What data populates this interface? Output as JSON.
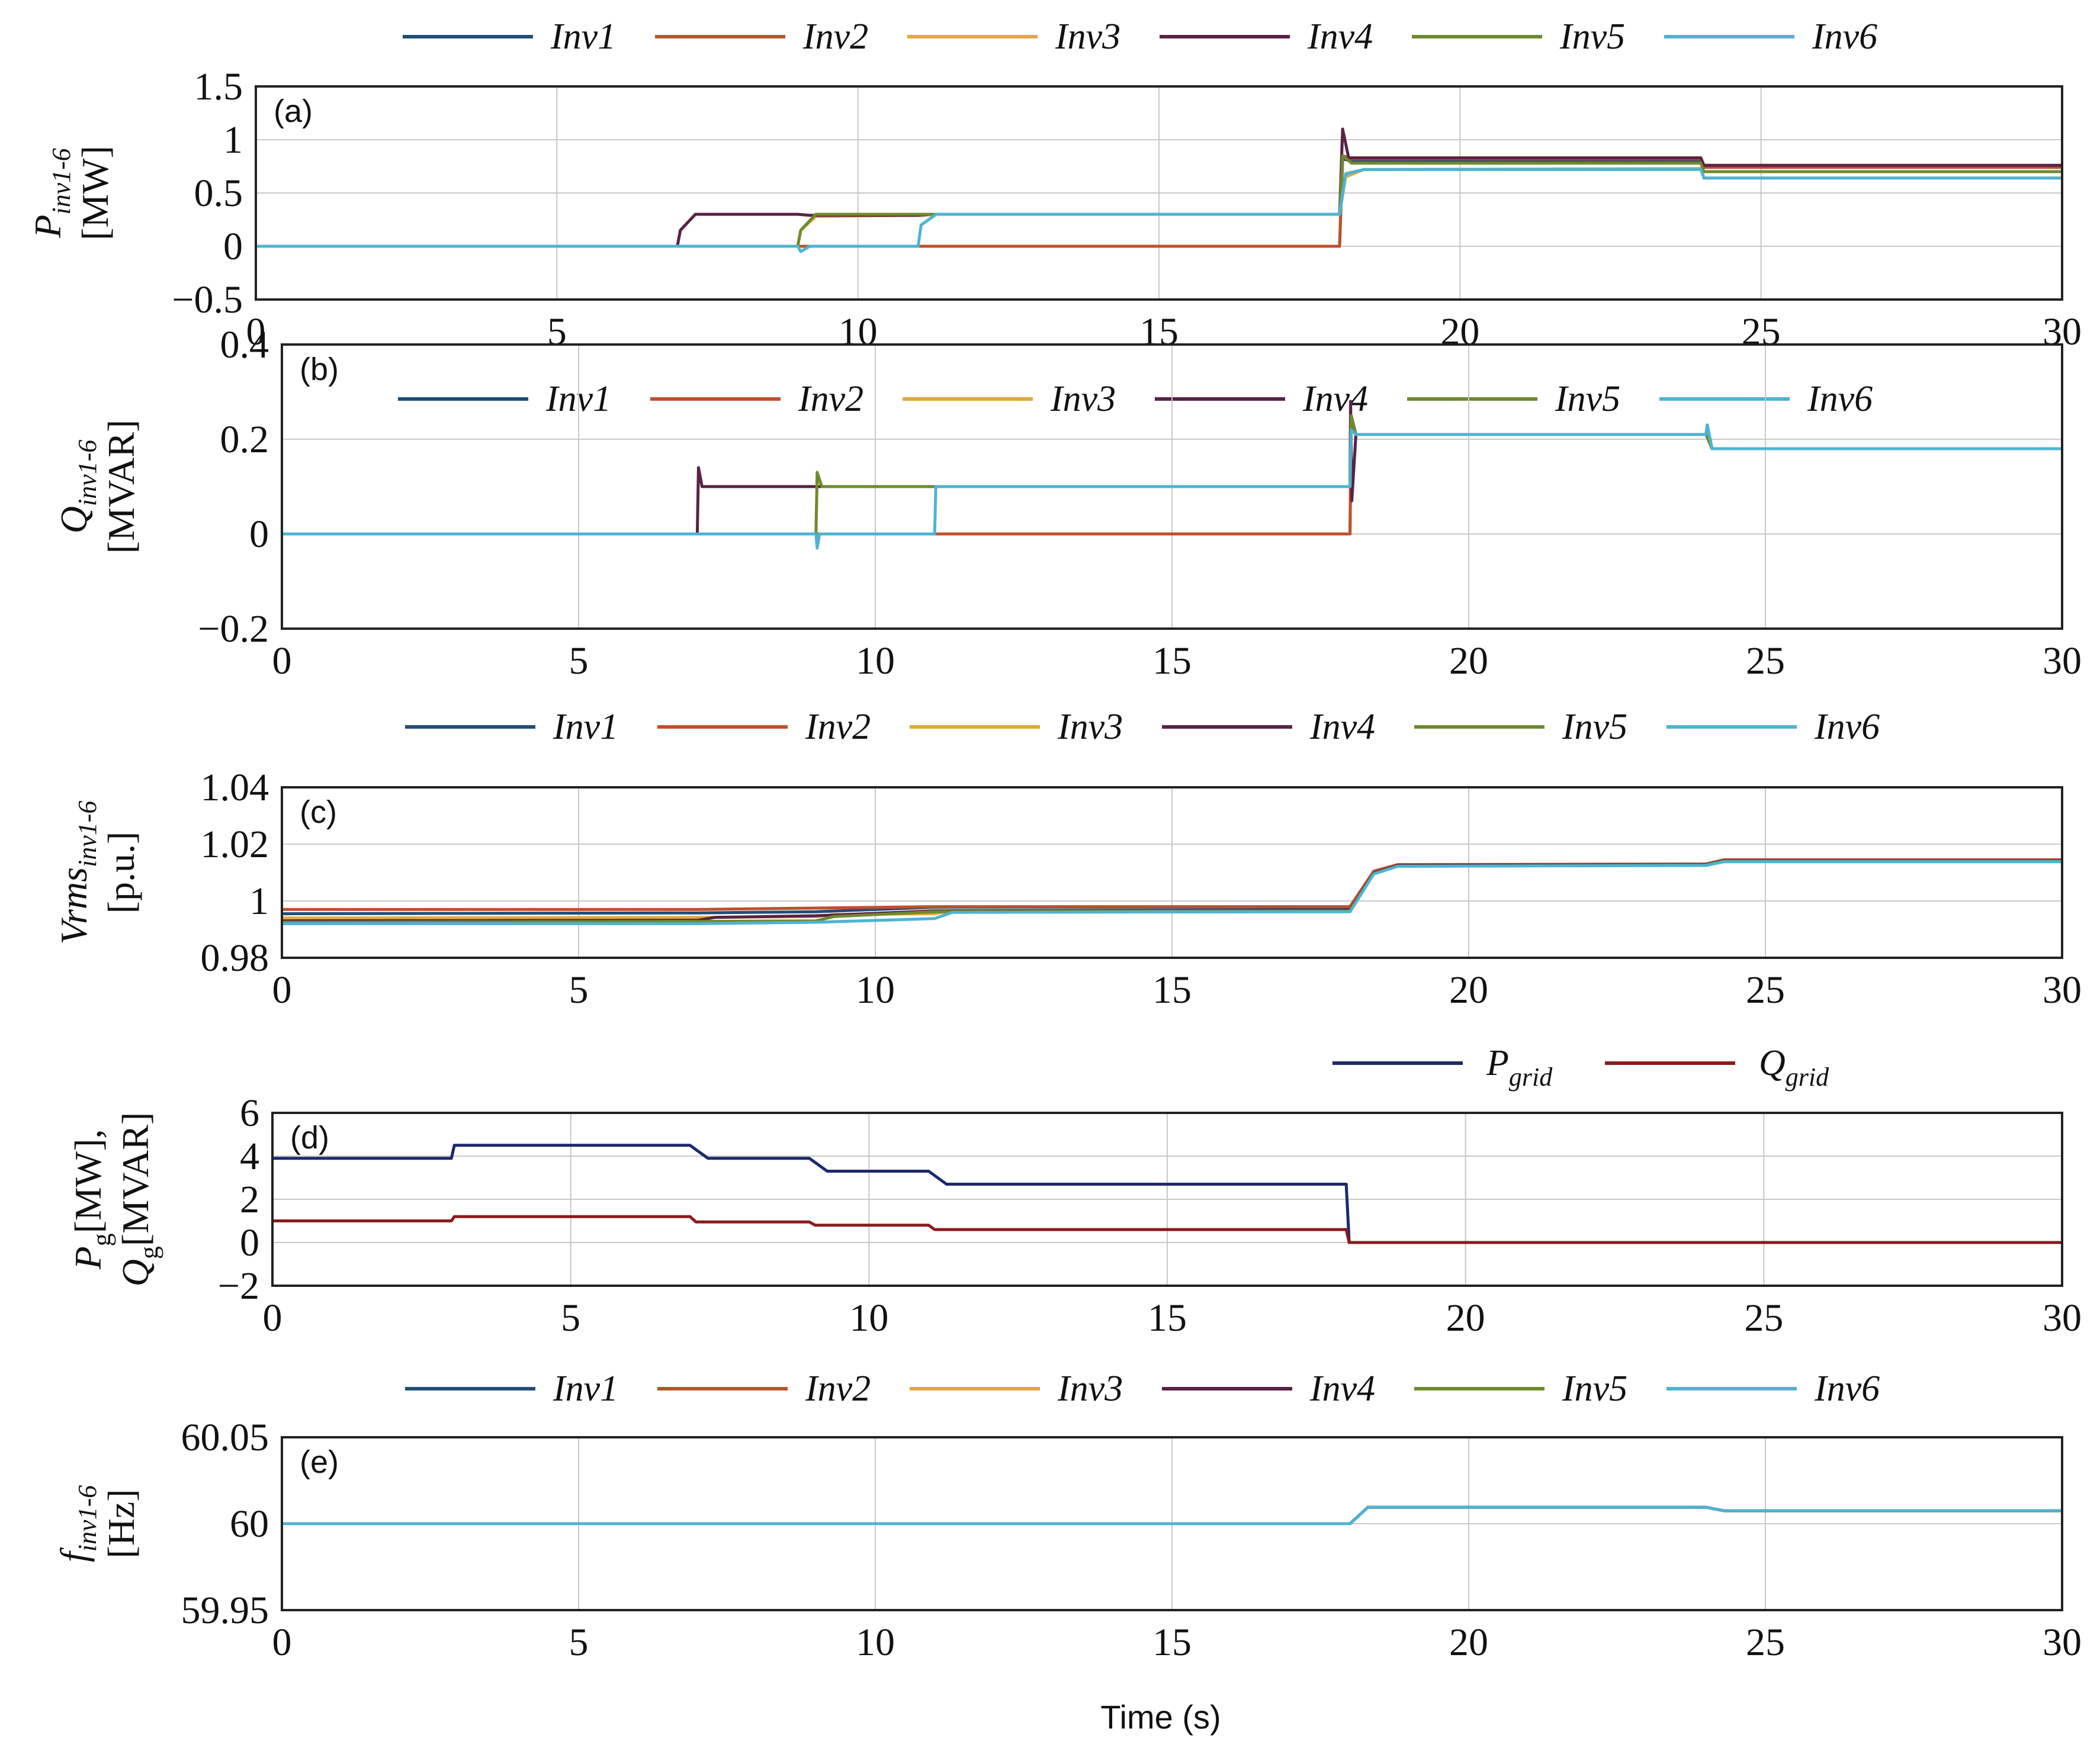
{
  "figure": {
    "x_label": "Time (s)"
  },
  "colors": {
    "Inv1": "#1f4e79",
    "Inv2": "#c0502a",
    "Inv3": "#e3a83a",
    "Inv4": "#5a2146",
    "Inv5": "#6f8a2c",
    "Inv6": "#4eb3d3",
    "P_grid": "#1a2a6c",
    "Q_grid": "#8b1a1a"
  },
  "chart_data": [
    {
      "id": "a",
      "panel_label": "(a)",
      "type": "line",
      "ylabel_main": "P",
      "ylabel_sub": "inv1-6",
      "ylabel_unit": "[MW]",
      "xlim": [
        0,
        30
      ],
      "ylim": [
        -0.5,
        1.5
      ],
      "xticks": [
        "0",
        "5",
        "10",
        "15",
        "20",
        "25",
        "30"
      ],
      "yticks": [
        "−0.5",
        "0",
        "0.5",
        "1",
        "1.5"
      ],
      "ytick_values": [
        -0.5,
        0,
        0.5,
        1,
        1.5
      ],
      "legend": [
        "Inv1",
        "Inv2",
        "Inv3",
        "Inv4",
        "Inv5",
        "Inv6"
      ],
      "series": [
        {
          "name": "Inv1",
          "x": [
            0,
            18,
            18.05,
            18.2,
            24,
            24.05,
            30
          ],
          "y": [
            0,
            0,
            0.82,
            0.8,
            0.8,
            0.75,
            0.75
          ]
        },
        {
          "name": "Inv2",
          "x": [
            0,
            18,
            18.05,
            18.2,
            24,
            24.05,
            30
          ],
          "y": [
            0,
            0,
            0.85,
            0.82,
            0.82,
            0.74,
            0.74
          ]
        },
        {
          "name": "Inv3",
          "x": [
            0,
            9,
            9.05,
            9.3,
            11,
            11.1,
            11.3,
            18,
            18.1,
            18.4,
            24,
            24.05,
            30
          ],
          "y": [
            0,
            0,
            0.15,
            0.28,
            0.29,
            0.29,
            0.3,
            0.3,
            0.65,
            0.72,
            0.73,
            0.64,
            0.64
          ]
        },
        {
          "name": "Inv4",
          "x": [
            0,
            7,
            7.05,
            7.3,
            9,
            9.2,
            11,
            11.2,
            18,
            18.05,
            18.15,
            24,
            24.05,
            30
          ],
          "y": [
            0,
            0,
            0.15,
            0.3,
            0.3,
            0.29,
            0.29,
            0.3,
            0.3,
            1.1,
            0.83,
            0.83,
            0.76,
            0.76
          ]
        },
        {
          "name": "Inv5",
          "x": [
            0,
            9,
            9.05,
            9.3,
            11,
            11.2,
            18,
            18.05,
            18.2,
            24,
            24.05,
            30
          ],
          "y": [
            0,
            0,
            0.15,
            0.3,
            0.3,
            0.3,
            0.3,
            0.85,
            0.78,
            0.78,
            0.7,
            0.7
          ]
        },
        {
          "name": "Inv6",
          "x": [
            0,
            9,
            9.05,
            9.2,
            11,
            11.05,
            11.3,
            18,
            18.1,
            18.4,
            24,
            24.05,
            30
          ],
          "y": [
            0,
            0,
            -0.05,
            0,
            0,
            0.2,
            0.3,
            0.3,
            0.68,
            0.72,
            0.72,
            0.64,
            0.64
          ]
        }
      ]
    },
    {
      "id": "b",
      "panel_label": "(b)",
      "type": "line",
      "ylabel_main": "Q",
      "ylabel_sub": "inv1-6",
      "ylabel_unit": "[MVAR]",
      "xlim": [
        0,
        30
      ],
      "ylim": [
        -0.2,
        0.4
      ],
      "xticks": [
        "0",
        "5",
        "10",
        "15",
        "20",
        "25",
        "30"
      ],
      "yticks": [
        "−0.2",
        "0",
        "0.2",
        "0.4"
      ],
      "ytick_values": [
        -0.2,
        0,
        0.2,
        0.4
      ],
      "legend": [
        "Inv1",
        "Inv2",
        "Inv3",
        "Inv4",
        "Inv5",
        "Inv6"
      ],
      "series": [
        {
          "name": "Inv1",
          "x": [
            0,
            18,
            18.02,
            18.1,
            24,
            24.02,
            24.1,
            30
          ],
          "y": [
            0,
            0,
            0.24,
            0.21,
            0.21,
            0.23,
            0.18,
            0.18
          ]
        },
        {
          "name": "Inv2",
          "x": [
            0,
            18,
            18.02,
            18.1,
            24,
            24.1,
            30
          ],
          "y": [
            0,
            0,
            0.25,
            0.21,
            0.21,
            0.18,
            0.18
          ]
        },
        {
          "name": "Inv3",
          "x": [
            0,
            9,
            9.02,
            9.1,
            11,
            11.02,
            11.1,
            18,
            18.02,
            18.1,
            24,
            24.1,
            30
          ],
          "y": [
            0,
            0,
            0.12,
            0.1,
            0.1,
            0.1,
            0.1,
            0.1,
            0.25,
            0.21,
            0.21,
            0.18,
            0.18
          ]
        },
        {
          "name": "Inv4",
          "x": [
            0,
            7,
            7.02,
            7.08,
            9,
            9.05,
            11,
            18,
            18.01,
            18.03,
            18.1,
            24,
            24.02,
            24.1,
            30
          ],
          "y": [
            0,
            0,
            0.14,
            0.1,
            0.1,
            0.1,
            0.1,
            0.1,
            0.28,
            0.07,
            0.21,
            0.21,
            0.23,
            0.18,
            0.18
          ]
        },
        {
          "name": "Inv5",
          "x": [
            0,
            9,
            9.02,
            9.1,
            11,
            18,
            18.02,
            18.1,
            24,
            24.1,
            30
          ],
          "y": [
            0,
            0,
            0.13,
            0.1,
            0.1,
            0.1,
            0.25,
            0.21,
            0.21,
            0.18,
            0.18
          ]
        },
        {
          "name": "Inv6",
          "x": [
            0,
            9,
            9.02,
            9.06,
            11,
            11.02,
            11.1,
            18,
            18.02,
            18.1,
            24,
            24.02,
            24.1,
            30
          ],
          "y": [
            0,
            0,
            -0.03,
            0,
            0,
            0.1,
            0.1,
            0.1,
            0.22,
            0.21,
            0.21,
            0.23,
            0.18,
            0.18
          ]
        }
      ]
    },
    {
      "id": "c",
      "panel_label": "(c)",
      "type": "line",
      "ylabel_main": "Vrms",
      "ylabel_sub": "inv1-6",
      "ylabel_unit": "[p.u.]",
      "xlim": [
        0,
        30
      ],
      "ylim": [
        0.98,
        1.04
      ],
      "xticks": [
        "0",
        "5",
        "10",
        "15",
        "20",
        "25",
        "30"
      ],
      "yticks": [
        "0.98",
        "1",
        "1.02",
        "1.04"
      ],
      "ytick_values": [
        0.98,
        1.0,
        1.02,
        1.04
      ],
      "legend": [
        "Inv1",
        "Inv2",
        "Inv3",
        "Inv4",
        "Inv5",
        "Inv6"
      ],
      "series": [
        {
          "name": "Inv1",
          "x": [
            0,
            7,
            9,
            11,
            18,
            18.4,
            18.8,
            24,
            24.3,
            30
          ],
          "y": [
            0.9955,
            0.9958,
            0.9962,
            0.9978,
            0.9978,
            1.01,
            1.0125,
            1.013,
            1.0142,
            1.0142
          ]
        },
        {
          "name": "Inv2",
          "x": [
            0,
            7,
            9,
            11,
            18,
            18.4,
            18.8,
            24,
            24.3,
            30
          ],
          "y": [
            0.997,
            0.997,
            0.9975,
            0.998,
            0.998,
            1.0105,
            1.0128,
            1.013,
            1.0145,
            1.0145
          ]
        },
        {
          "name": "Inv3",
          "x": [
            0,
            7,
            9,
            9.3,
            11,
            11.3,
            18,
            18.4,
            18.8,
            24,
            24.3,
            30
          ],
          "y": [
            0.994,
            0.9942,
            0.9945,
            0.9952,
            0.9955,
            0.9965,
            0.9968,
            1.0098,
            1.0125,
            1.0128,
            1.0142,
            1.0142
          ]
        },
        {
          "name": "Inv4",
          "x": [
            0,
            7,
            7.3,
            9,
            11,
            18,
            18.4,
            18.8,
            24,
            24.3,
            30
          ],
          "y": [
            0.993,
            0.9932,
            0.9942,
            0.9948,
            0.9965,
            0.9968,
            1.0098,
            1.0125,
            1.0128,
            1.0142,
            1.0142
          ]
        },
        {
          "name": "Inv5",
          "x": [
            0,
            7,
            9,
            9.3,
            11,
            18,
            18.4,
            18.8,
            24,
            24.3,
            30
          ],
          "y": [
            0.9925,
            0.9928,
            0.993,
            0.9945,
            0.9962,
            0.9965,
            1.0095,
            1.0122,
            1.0126,
            1.014,
            1.014
          ]
        },
        {
          "name": "Inv6",
          "x": [
            0,
            7,
            9,
            11,
            11.3,
            18,
            18.4,
            18.8,
            24,
            24.3,
            30
          ],
          "y": [
            0.992,
            0.992,
            0.9925,
            0.9938,
            0.996,
            0.9962,
            1.0095,
            1.0122,
            1.0125,
            1.0138,
            1.0138
          ]
        }
      ]
    },
    {
      "id": "d",
      "panel_label": "(d)",
      "type": "line",
      "ylabel_line1": "P",
      "ylabel_line1_sub": "g",
      "ylabel_line1_unit": "[MW],",
      "ylabel_line2": "Q",
      "ylabel_line2_sub": "g",
      "ylabel_line2_unit": "[MVAR]",
      "xlim": [
        0,
        30
      ],
      "ylim": [
        -2,
        6
      ],
      "xticks": [
        "0",
        "5",
        "10",
        "15",
        "20",
        "25",
        "30"
      ],
      "yticks": [
        "−2",
        "0",
        "2",
        "4",
        "6"
      ],
      "ytick_values": [
        -2,
        0,
        2,
        4,
        6
      ],
      "legend": [
        "P_grid",
        "Q_grid"
      ],
      "legend_labels": [
        {
          "main": "P",
          "sub": "grid"
        },
        {
          "main": "Q",
          "sub": "grid"
        }
      ],
      "series": [
        {
          "name": "P_grid",
          "x": [
            0,
            3,
            3.05,
            7,
            7.3,
            9,
            9.3,
            11,
            11.3,
            18,
            18.05,
            30
          ],
          "y": [
            3.9,
            3.9,
            4.5,
            4.5,
            3.9,
            3.9,
            3.3,
            3.3,
            2.7,
            2.7,
            0,
            0
          ]
        },
        {
          "name": "Q_grid",
          "x": [
            0,
            3,
            3.05,
            7,
            7.1,
            9,
            9.1,
            11,
            11.1,
            18,
            18.05,
            30
          ],
          "y": [
            1.0,
            1.0,
            1.2,
            1.2,
            0.95,
            0.95,
            0.8,
            0.8,
            0.6,
            0.6,
            0,
            0
          ]
        }
      ]
    },
    {
      "id": "e",
      "panel_label": "(e)",
      "type": "line",
      "ylabel_main": "f",
      "ylabel_sub": "inv1-6",
      "ylabel_unit": "[Hz]",
      "xlim": [
        0,
        30
      ],
      "ylim": [
        59.95,
        60.05
      ],
      "xticks": [
        "0",
        "5",
        "10",
        "15",
        "20",
        "25",
        "30"
      ],
      "yticks": [
        "59.95",
        "60",
        "60.05"
      ],
      "ytick_values": [
        59.95,
        60,
        60.05
      ],
      "legend": [
        "Inv1",
        "Inv2",
        "Inv3",
        "Inv4",
        "Inv5",
        "Inv6"
      ],
      "series": [
        {
          "name": "Inv1",
          "x": [
            0,
            18,
            18.3,
            24,
            24.3,
            30
          ],
          "y": [
            60,
            60,
            60.0095,
            60.0095,
            60.0075,
            60.0075
          ]
        },
        {
          "name": "Inv2",
          "x": [
            0,
            18,
            18.3,
            24,
            24.3,
            30
          ],
          "y": [
            60,
            60,
            60.0095,
            60.0095,
            60.0075,
            60.0075
          ]
        },
        {
          "name": "Inv3",
          "x": [
            0,
            18,
            18.3,
            24,
            24.3,
            30
          ],
          "y": [
            60,
            60,
            60.0095,
            60.0095,
            60.0075,
            60.0075
          ]
        },
        {
          "name": "Inv4",
          "x": [
            0,
            18,
            18.3,
            24,
            24.3,
            30
          ],
          "y": [
            60,
            60,
            60.0095,
            60.0095,
            60.0075,
            60.0075
          ]
        },
        {
          "name": "Inv5",
          "x": [
            0,
            18,
            18.3,
            24,
            24.3,
            30
          ],
          "y": [
            60,
            60,
            60.0095,
            60.0095,
            60.0075,
            60.0075
          ]
        },
        {
          "name": "Inv6",
          "x": [
            0,
            18,
            18.3,
            24,
            24.3,
            30
          ],
          "y": [
            60,
            60,
            60.0095,
            60.0095,
            60.0075,
            60.0075
          ]
        }
      ]
    }
  ]
}
